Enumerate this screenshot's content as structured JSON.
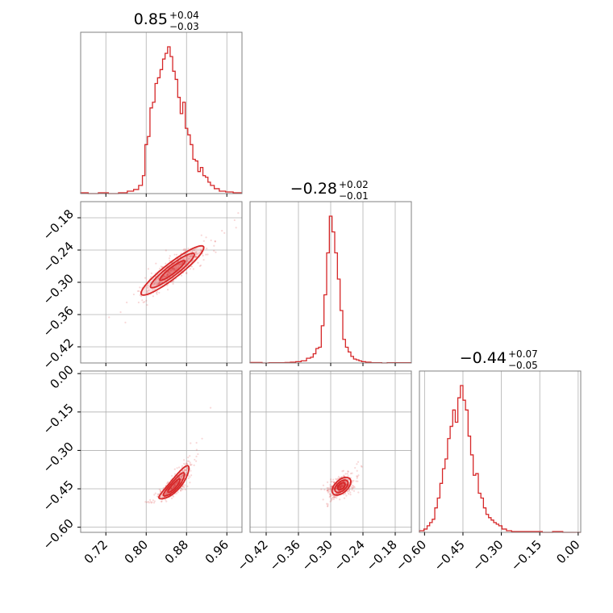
{
  "chart_data": {
    "type": "corner",
    "color": "#d62728",
    "parameters": [
      {
        "title": {
          "value": "0.85",
          "plus": "+0.04",
          "minus": "−0.03"
        },
        "range": [
          0.67,
          0.99
        ],
        "ticks": [
          0.72,
          0.8,
          0.88,
          0.96
        ],
        "tick_labels": [
          "0.72",
          "0.80",
          "0.88",
          "0.96"
        ]
      },
      {
        "title": {
          "value": "−0.28",
          "plus": "+0.02",
          "minus": "−0.01"
        },
        "range": [
          -0.45,
          -0.15
        ],
        "ticks": [
          -0.42,
          -0.36,
          -0.3,
          -0.24,
          -0.18
        ],
        "tick_labels": [
          "−0.42",
          "−0.36",
          "−0.30",
          "−0.24",
          "−0.18"
        ]
      },
      {
        "title": {
          "value": "−0.44",
          "plus": "+0.07",
          "minus": "−0.05"
        },
        "range": [
          -0.62,
          0.01
        ],
        "ticks": [
          -0.6,
          -0.45,
          -0.3,
          -0.15,
          0.0
        ],
        "tick_labels": [
          "−0.60",
          "−0.45",
          "−0.30",
          "−0.15",
          "0.00"
        ]
      }
    ],
    "histograms": [
      {
        "x": [
          0.675,
          0.695,
          0.715,
          0.735,
          0.755,
          0.77,
          0.78,
          0.79,
          0.795,
          0.8,
          0.805,
          0.81,
          0.815,
          0.82,
          0.825,
          0.83,
          0.835,
          0.84,
          0.845,
          0.85,
          0.855,
          0.86,
          0.865,
          0.87,
          0.875,
          0.88,
          0.885,
          0.89,
          0.895,
          0.9,
          0.905,
          0.91,
          0.915,
          0.92,
          0.925,
          0.93,
          0.94,
          0.95,
          0.965,
          0.98
        ],
        "counts": [
          1,
          0,
          1,
          0,
          1,
          3,
          5,
          10,
          22,
          60,
          70,
          105,
          112,
          135,
          142,
          152,
          165,
          172,
          180,
          168,
          150,
          140,
          118,
          98,
          112,
          80,
          72,
          60,
          42,
          40,
          27,
          32,
          22,
          20,
          14,
          10,
          6,
          3,
          2,
          1
        ]
      },
      {
        "x": [
          -0.435,
          -0.42,
          -0.41,
          -0.4,
          -0.39,
          -0.38,
          -0.37,
          -0.36,
          -0.35,
          -0.34,
          -0.335,
          -0.33,
          -0.325,
          -0.32,
          -0.315,
          -0.31,
          -0.305,
          -0.3,
          -0.295,
          -0.29,
          -0.285,
          -0.28,
          -0.275,
          -0.27,
          -0.265,
          -0.26,
          -0.255,
          -0.25,
          -0.245,
          -0.24,
          -0.23,
          -0.22,
          -0.21,
          -0.2,
          -0.19
        ],
        "counts": [
          2,
          0,
          1,
          1,
          1,
          2,
          3,
          5,
          8,
          18,
          22,
          35,
          55,
          60,
          142,
          260,
          420,
          560,
          500,
          420,
          320,
          200,
          90,
          60,
          42,
          25,
          15,
          12,
          8,
          5,
          3,
          1,
          1,
          0,
          1
        ]
      },
      {
        "x": [
          -0.61,
          -0.595,
          -0.585,
          -0.575,
          -0.565,
          -0.555,
          -0.545,
          -0.535,
          -0.525,
          -0.515,
          -0.505,
          -0.495,
          -0.485,
          -0.475,
          -0.465,
          -0.455,
          -0.445,
          -0.435,
          -0.425,
          -0.415,
          -0.405,
          -0.395,
          -0.385,
          -0.375,
          -0.365,
          -0.355,
          -0.345,
          -0.335,
          -0.325,
          -0.315,
          -0.305,
          -0.29,
          -0.27,
          -0.25,
          -0.23,
          -0.2,
          -0.16,
          -0.12,
          -0.08,
          -0.04
        ],
        "counts": [
          2,
          4,
          8,
          12,
          16,
          30,
          42,
          60,
          78,
          90,
          115,
          130,
          150,
          135,
          165,
          180,
          162,
          150,
          118,
          95,
          70,
          72,
          48,
          42,
          30,
          22,
          18,
          15,
          12,
          10,
          8,
          4,
          2,
          1,
          1,
          1,
          1,
          0,
          1,
          0
        ]
      }
    ],
    "pairs": [
      {
        "x_param": 0,
        "y_param": 1,
        "center": [
          0.852,
          -0.278
        ],
        "slope": 0.72,
        "sd_major": 0.038,
        "sd_minor": 0.0045,
        "curvature": 0.0
      },
      {
        "x_param": 0,
        "y_param": 2,
        "center": [
          0.855,
          -0.44
        ],
        "slope": 2.35,
        "sd_major": 0.035,
        "sd_minor": 0.004,
        "curvature": 3.2
      },
      {
        "x_param": 1,
        "y_param": 2,
        "center": [
          -0.28,
          -0.44
        ],
        "slope": 3.2,
        "sd_major": 0.018,
        "sd_minor": 0.0045,
        "curvature": 0.0
      }
    ]
  }
}
